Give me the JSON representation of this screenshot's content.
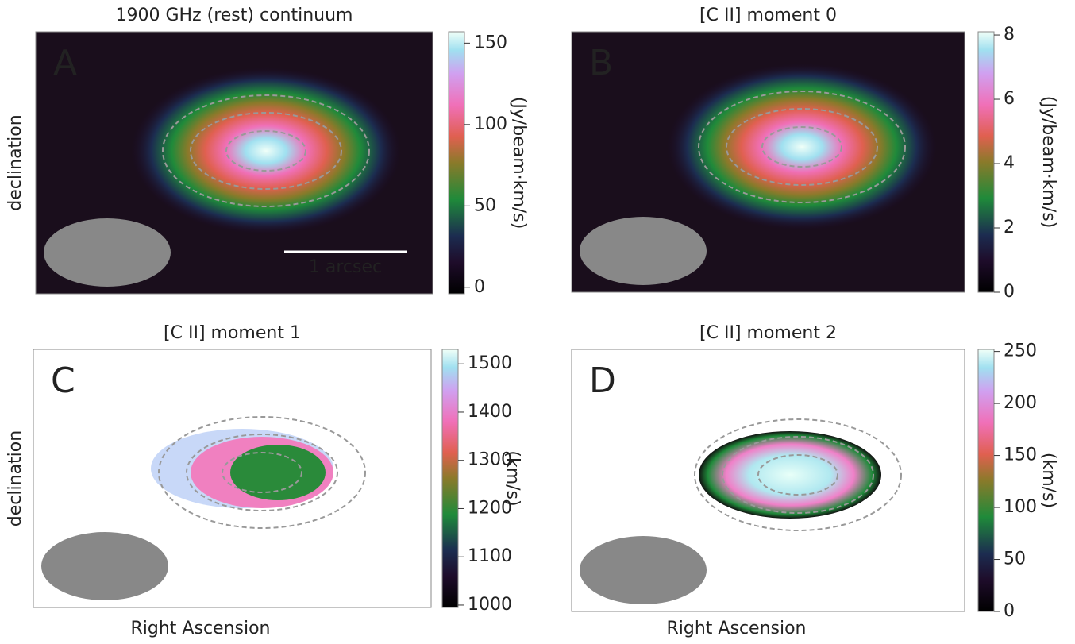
{
  "chart_data": [
    {
      "type": "image",
      "title": "1900 GHz (rest) continuum",
      "panel_label": "A",
      "colorbar_label": "(Jy/beam·km/s)",
      "clim": [
        -4,
        157
      ],
      "cticks": [
        0,
        50,
        100,
        150
      ],
      "ylabel": "declination",
      "scale_bar": "1 arcsec"
    },
    {
      "type": "image",
      "title": "[C II] moment 0",
      "panel_label": "B",
      "colorbar_label": "(Jy/beam·km/s)",
      "clim": [
        0,
        8.1
      ],
      "cticks": [
        0,
        2,
        4,
        6,
        8
      ]
    },
    {
      "type": "image",
      "title": "[C II] moment 1",
      "panel_label": "C",
      "colorbar_label": "(km/s)",
      "clim": [
        995,
        1530
      ],
      "cticks": [
        1000,
        1100,
        1200,
        1300,
        1400,
        1500
      ],
      "ylabel": "declination",
      "xlabel": "Right Ascension"
    },
    {
      "type": "image",
      "title": "[C II] moment 2",
      "panel_label": "D",
      "colorbar_label": "(km/s)",
      "clim": [
        0,
        252
      ],
      "cticks": [
        0,
        50,
        100,
        150,
        200,
        250
      ],
      "xlabel": "Right Ascension"
    }
  ]
}
